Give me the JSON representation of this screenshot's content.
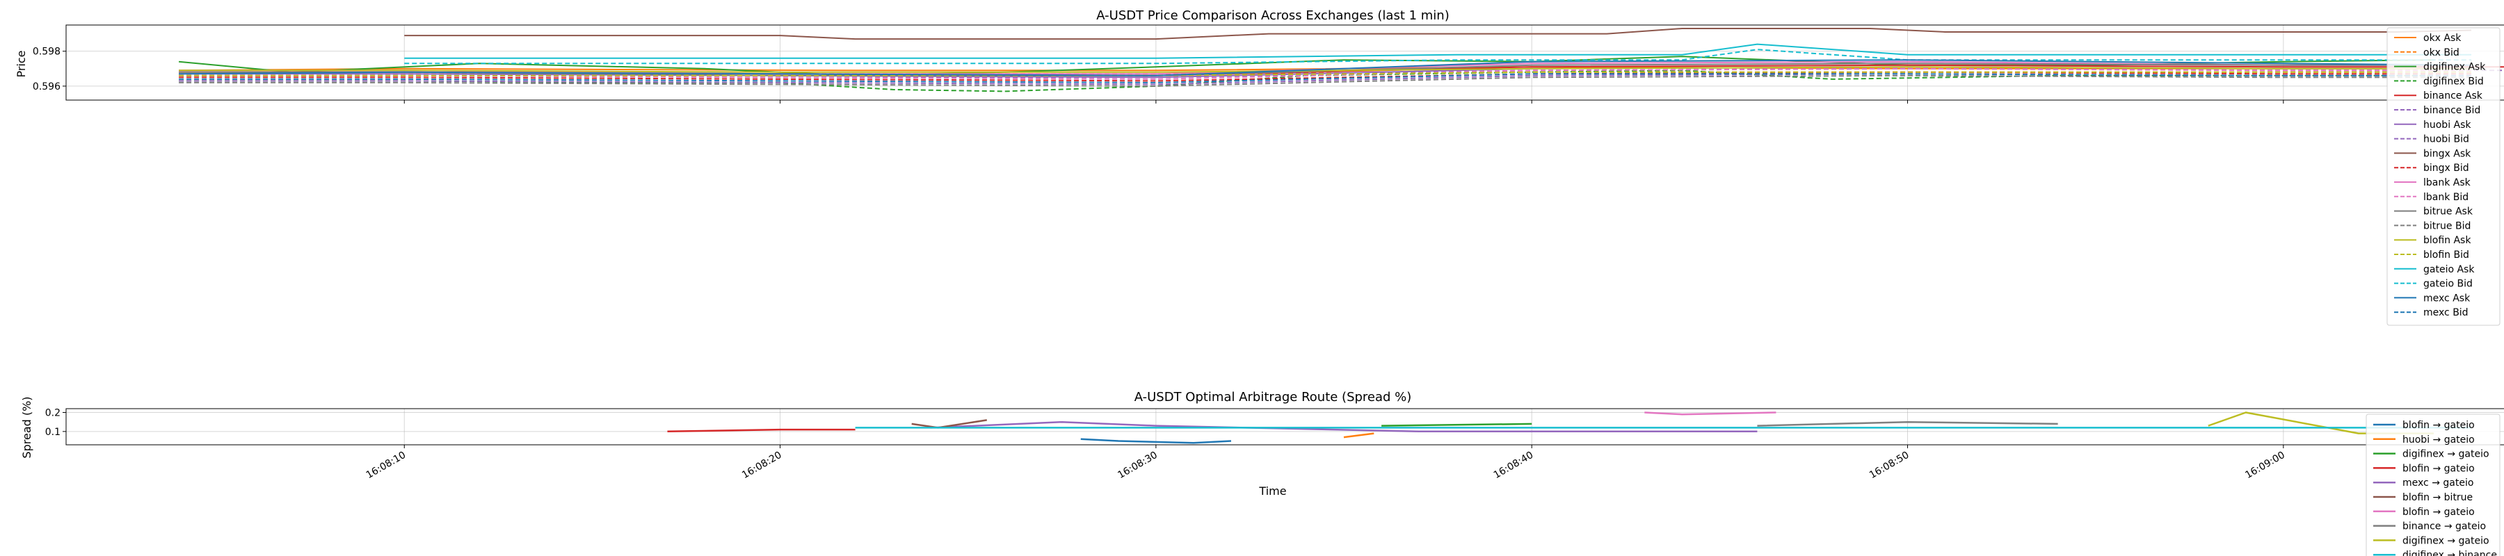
{
  "chart_data": [
    {
      "type": "line",
      "title": "A-USDT Price Comparison Across Exchanges (last 1 min)",
      "xlabel": "",
      "ylabel": "Price",
      "ylim": [
        0.5952,
        0.5995
      ],
      "xlim": [
        "16:08:01",
        "16:09:06"
      ],
      "yticks": [
        "0.596",
        "0.598"
      ],
      "grid": true,
      "legend_position": "right",
      "series": [
        {
          "name": "okx Ask",
          "color": "#ff7f0e",
          "style": "solid",
          "x": [
            "16:08:04",
            "16:08:10",
            "16:08:22",
            "16:08:30",
            "16:08:40",
            "16:08:50",
            "16:09:00",
            "16:09:05"
          ],
          "y": [
            0.5969,
            0.597,
            0.5969,
            0.5969,
            0.5971,
            0.597,
            0.597,
            0.597
          ]
        },
        {
          "name": "okx Bid",
          "color": "#ff7f0e",
          "style": "dashed",
          "x": [
            "16:08:04",
            "16:08:10",
            "16:08:22",
            "16:08:30",
            "16:08:40",
            "16:08:50",
            "16:09:00",
            "16:09:05"
          ],
          "y": [
            0.5967,
            0.5967,
            0.5967,
            0.5967,
            0.5968,
            0.5968,
            0.5968,
            0.5968
          ]
        },
        {
          "name": "digifinex Ask",
          "color": "#2ca02c",
          "style": "solid",
          "x": [
            "16:08:04",
            "16:08:07",
            "16:08:12",
            "16:08:18",
            "16:08:22",
            "16:08:26",
            "16:08:30",
            "16:08:35",
            "16:08:40",
            "16:08:44",
            "16:08:50",
            "16:08:55",
            "16:09:00",
            "16:09:04"
          ],
          "y": [
            0.5974,
            0.5968,
            0.5973,
            0.597,
            0.5966,
            0.5968,
            0.5971,
            0.5975,
            0.5974,
            0.5977,
            0.5972,
            0.5972,
            0.5974,
            0.5975
          ]
        },
        {
          "name": "digifinex Bid",
          "color": "#2ca02c",
          "style": "dashed",
          "x": [
            "16:08:04",
            "16:08:10",
            "16:08:16",
            "16:08:20",
            "16:08:23",
            "16:08:26",
            "16:08:30",
            "16:08:34",
            "16:08:40",
            "16:08:44",
            "16:08:48",
            "16:08:54",
            "16:09:00",
            "16:09:04"
          ],
          "y": [
            0.5963,
            0.5963,
            0.5962,
            0.5962,
            0.5958,
            0.5957,
            0.596,
            0.5966,
            0.5968,
            0.5969,
            0.5964,
            0.5966,
            0.5966,
            0.5966
          ]
        },
        {
          "name": "binance Ask",
          "color": "#d62728",
          "style": "solid",
          "x": [
            "16:08:04",
            "16:08:10",
            "16:08:20",
            "16:08:30",
            "16:08:40",
            "16:08:50",
            "16:09:00",
            "16:09:06"
          ],
          "y": [
            0.5968,
            0.5968,
            0.5967,
            0.5966,
            0.5971,
            0.5972,
            0.5971,
            0.5971
          ]
        },
        {
          "name": "binance Bid",
          "color": "#9467bd",
          "style": "dashed",
          "x": [
            "16:08:04",
            "16:08:10",
            "16:08:20",
            "16:08:30",
            "16:08:40",
            "16:08:50",
            "16:09:00",
            "16:09:06"
          ],
          "y": [
            0.5966,
            0.5966,
            0.5965,
            0.5965,
            0.5969,
            0.597,
            0.5969,
            0.5969
          ]
        },
        {
          "name": "huobi Ask",
          "color": "#9467bd",
          "style": "solid",
          "x": [
            "16:08:04",
            "16:08:10",
            "16:08:20",
            "16:08:30",
            "16:08:40",
            "16:08:50",
            "16:09:00",
            "16:09:05"
          ],
          "y": [
            0.5967,
            0.5967,
            0.5966,
            0.5965,
            0.597,
            0.5971,
            0.597,
            0.597
          ]
        },
        {
          "name": "huobi Bid",
          "color": "#9467bd",
          "style": "dashed",
          "x": [
            "16:08:04",
            "16:08:10",
            "16:08:20",
            "16:08:30",
            "16:08:40",
            "16:08:50",
            "16:09:00",
            "16:09:05"
          ],
          "y": [
            0.5963,
            0.5963,
            0.5962,
            0.5961,
            0.5966,
            0.5967,
            0.5966,
            0.5966
          ]
        },
        {
          "name": "bingx Ask",
          "color": "#8c564b",
          "style": "solid",
          "x": [
            "16:08:10",
            "16:08:20",
            "16:08:22",
            "16:08:30",
            "16:08:33",
            "16:08:42",
            "16:08:44",
            "16:08:49",
            "16:08:51",
            "16:09:03",
            "16:09:05"
          ],
          "y": [
            0.5989,
            0.5989,
            0.5987,
            0.5987,
            0.599,
            0.599,
            0.5993,
            0.5993,
            0.5991,
            0.5991,
            0.5992
          ]
        },
        {
          "name": "bingx Bid",
          "color": "#d62728",
          "style": "dashed",
          "x": [
            "16:08:04",
            "16:08:10",
            "16:08:20",
            "16:08:30",
            "16:08:40",
            "16:08:50",
            "16:09:00",
            "16:09:05"
          ],
          "y": [
            0.5965,
            0.5965,
            0.5964,
            0.5963,
            0.5967,
            0.5968,
            0.5967,
            0.5967
          ]
        },
        {
          "name": "lbank Ask",
          "color": "#e377c2",
          "style": "solid",
          "x": [
            "16:08:04",
            "16:08:10",
            "16:08:20",
            "16:08:30",
            "16:08:40",
            "16:08:50",
            "16:09:00",
            "16:09:05"
          ],
          "y": [
            0.5969,
            0.5969,
            0.5967,
            0.5967,
            0.5973,
            0.5974,
            0.5972,
            0.5972
          ]
        },
        {
          "name": "lbank Bid",
          "color": "#e377c2",
          "style": "dashed",
          "x": [
            "16:08:04",
            "16:08:10",
            "16:08:20",
            "16:08:30",
            "16:08:40",
            "16:08:50",
            "16:09:00",
            "16:09:05"
          ],
          "y": [
            0.5966,
            0.5966,
            0.5965,
            0.5964,
            0.5969,
            0.597,
            0.5969,
            0.5969
          ]
        },
        {
          "name": "bitrue Ask",
          "color": "#7f7f7f",
          "style": "solid",
          "x": [
            "16:08:04",
            "16:08:10",
            "16:08:20",
            "16:08:30",
            "16:08:40",
            "16:08:50",
            "16:09:00",
            "16:09:05"
          ],
          "y": [
            0.5968,
            0.5968,
            0.5966,
            0.5966,
            0.5972,
            0.5973,
            0.5972,
            0.5972
          ]
        },
        {
          "name": "bitrue Bid",
          "color": "#7f7f7f",
          "style": "dashed",
          "x": [
            "16:08:04",
            "16:08:10",
            "16:08:20",
            "16:08:30",
            "16:08:40",
            "16:08:50",
            "16:09:00",
            "16:09:05"
          ],
          "y": [
            0.5962,
            0.5962,
            0.5961,
            0.596,
            0.5965,
            0.5966,
            0.5965,
            0.5965
          ]
        },
        {
          "name": "blofin Ask",
          "color": "#bcbd22",
          "style": "solid",
          "x": [
            "16:08:04",
            "16:08:10",
            "16:08:20",
            "16:08:30",
            "16:08:40",
            "16:08:50",
            "16:09:00",
            "16:09:05"
          ],
          "y": [
            0.5969,
            0.5969,
            0.5968,
            0.5968,
            0.597,
            0.5971,
            0.597,
            0.597
          ]
        },
        {
          "name": "blofin Bid",
          "color": "#bcbd22",
          "style": "dashed",
          "x": [
            "16:08:04",
            "16:08:10",
            "16:08:20",
            "16:08:30",
            "16:08:40",
            "16:08:50",
            "16:09:00",
            "16:09:05"
          ],
          "y": [
            0.5966,
            0.5966,
            0.5966,
            0.5966,
            0.5968,
            0.5968,
            0.5968,
            0.5968
          ]
        },
        {
          "name": "gateio Ask",
          "color": "#17becf",
          "style": "solid",
          "x": [
            "16:08:10",
            "16:08:20",
            "16:08:30",
            "16:08:38",
            "16:08:44",
            "16:08:46",
            "16:08:50",
            "16:09:00",
            "16:09:05"
          ],
          "y": [
            0.5976,
            0.5976,
            0.5976,
            0.5978,
            0.5978,
            0.5984,
            0.5978,
            0.5978,
            0.5978
          ]
        },
        {
          "name": "gateio Bid",
          "color": "#17becf",
          "style": "dashed",
          "x": [
            "16:08:10",
            "16:08:20",
            "16:08:30",
            "16:08:38",
            "16:08:44",
            "16:08:46",
            "16:08:50",
            "16:09:00",
            "16:09:05"
          ],
          "y": [
            0.5973,
            0.5973,
            0.5973,
            0.5975,
            0.5975,
            0.5981,
            0.5975,
            0.5975,
            0.5975
          ]
        },
        {
          "name": "mexc Ask",
          "color": "#1f77b4",
          "style": "solid",
          "x": [
            "16:08:04",
            "16:08:10",
            "16:08:20",
            "16:08:30",
            "16:08:40",
            "16:08:50",
            "16:09:00",
            "16:09:05"
          ],
          "y": [
            0.5967,
            0.5968,
            0.5967,
            0.5966,
            0.5974,
            0.5975,
            0.5973,
            0.5972
          ]
        },
        {
          "name": "mexc Bid",
          "color": "#1f77b4",
          "style": "dashed",
          "x": [
            "16:08:04",
            "16:08:10",
            "16:08:20",
            "16:08:30",
            "16:08:40",
            "16:08:50",
            "16:09:00",
            "16:09:05"
          ],
          "y": [
            0.5964,
            0.5964,
            0.5963,
            0.5962,
            0.5967,
            0.5967,
            0.5966,
            0.5966
          ]
        }
      ]
    },
    {
      "type": "line",
      "title": "A-USDT Optimal Arbitrage Route (Spread %)",
      "xlabel": "Time",
      "ylabel": "Spread (%)",
      "ylim": [
        0.03,
        0.22
      ],
      "xlim": [
        "16:08:01",
        "16:09:06"
      ],
      "xticks": [
        "16:08:10",
        "16:08:20",
        "16:08:30",
        "16:08:40",
        "16:08:50",
        "16:09:00"
      ],
      "yticks": [
        "0.1",
        "0.2"
      ],
      "grid": true,
      "legend_position": "lower right",
      "series": [
        {
          "name": "blofin → gateio",
          "color": "#1f77b4",
          "x": [
            "16:08:28",
            "16:08:29",
            "16:08:31",
            "16:08:32"
          ],
          "y": [
            0.06,
            0.05,
            0.04,
            0.05
          ]
        },
        {
          "name": "huobi → gateio",
          "color": "#ff7f0e",
          "x": [
            "16:08:35",
            "16:08:35.8"
          ],
          "y": [
            0.07,
            0.09
          ]
        },
        {
          "name": "digifinex → gateio",
          "color": "#2ca02c",
          "x": [
            "16:08:36",
            "16:08:40"
          ],
          "y": [
            0.13,
            0.14
          ]
        },
        {
          "name": "blofin → gateio",
          "color": "#d62728",
          "x": [
            "16:08:17",
            "16:08:20",
            "16:08:22"
          ],
          "y": [
            0.1,
            0.11,
            0.11
          ]
        },
        {
          "name": "mexc → gateio",
          "color": "#9467bd",
          "x": [
            "16:08:24",
            "16:08:27.5",
            "16:08:30",
            "16:08:37",
            "16:08:46"
          ],
          "y": [
            0.12,
            0.15,
            0.13,
            0.1,
            0.1
          ]
        },
        {
          "name": "blofin → bitrue",
          "color": "#8c564b",
          "x": [
            "16:08:23.5",
            "16:08:24.2",
            "16:08:25.5"
          ],
          "y": [
            0.14,
            0.12,
            0.16
          ]
        },
        {
          "name": "blofin → gateio",
          "color": "#e377c2",
          "x": [
            "16:08:43",
            "16:08:44",
            "16:08:46.5"
          ],
          "y": [
            0.2,
            0.19,
            0.2
          ]
        },
        {
          "name": "binance → gateio",
          "color": "#7f7f7f",
          "x": [
            "16:08:46",
            "16:08:50",
            "16:08:54"
          ],
          "y": [
            0.13,
            0.15,
            0.14
          ]
        },
        {
          "name": "digifinex → gateio",
          "color": "#bcbd22",
          "x": [
            "16:08:58",
            "16:08:59",
            "16:09:02",
            "16:09:04"
          ],
          "y": [
            0.13,
            0.2,
            0.09,
            0.09
          ]
        },
        {
          "name": "digifinex → binance",
          "color": "#17becf",
          "x": [
            "16:08:22",
            "16:08:30",
            "16:08:40",
            "16:08:50",
            "16:09:00",
            "16:09:05"
          ],
          "y": [
            0.12,
            0.12,
            0.12,
            0.12,
            0.12,
            0.12
          ]
        }
      ]
    }
  ]
}
